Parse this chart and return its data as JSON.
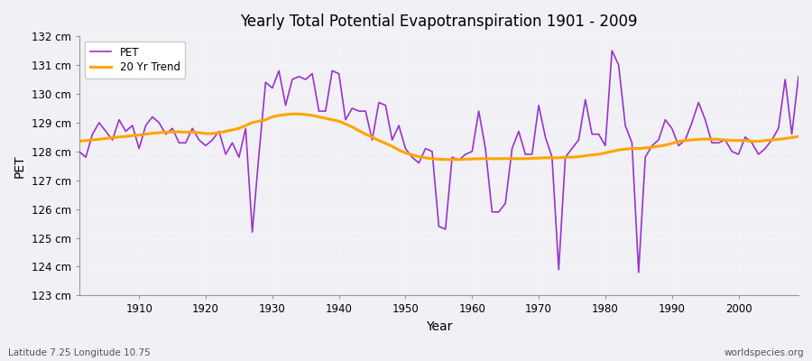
{
  "title": "Yearly Total Potential Evapotranspiration 1901 - 2009",
  "xlabel": "Year",
  "ylabel": "PET",
  "subtitle": "Latitude 7.25 Longitude 10.75",
  "watermark": "worldspecies.org",
  "legend_pet": "PET",
  "legend_trend": "20 Yr Trend",
  "pet_color": "#9933cc",
  "trend_color": "#ffa500",
  "bg_color": "#f0f0f5",
  "ylim_min": 123,
  "ylim_max": 132,
  "years": [
    1901,
    1902,
    1903,
    1904,
    1905,
    1906,
    1907,
    1908,
    1909,
    1910,
    1911,
    1912,
    1913,
    1914,
    1915,
    1916,
    1917,
    1918,
    1919,
    1920,
    1921,
    1922,
    1923,
    1924,
    1925,
    1926,
    1927,
    1928,
    1929,
    1930,
    1931,
    1932,
    1933,
    1934,
    1935,
    1936,
    1937,
    1938,
    1939,
    1940,
    1941,
    1942,
    1943,
    1944,
    1945,
    1946,
    1947,
    1948,
    1949,
    1950,
    1951,
    1952,
    1953,
    1954,
    1955,
    1956,
    1957,
    1958,
    1959,
    1960,
    1961,
    1962,
    1963,
    1964,
    1965,
    1966,
    1967,
    1968,
    1969,
    1970,
    1971,
    1972,
    1973,
    1974,
    1975,
    1976,
    1977,
    1978,
    1979,
    1980,
    1981,
    1982,
    1983,
    1984,
    1985,
    1986,
    1987,
    1988,
    1989,
    1990,
    1991,
    1992,
    1993,
    1994,
    1995,
    1996,
    1997,
    1998,
    1999,
    2000,
    2001,
    2002,
    2003,
    2004,
    2005,
    2006,
    2007,
    2008,
    2009
  ],
  "pet_values": [
    128.0,
    127.8,
    128.6,
    129.0,
    128.7,
    128.4,
    129.1,
    128.7,
    128.9,
    128.1,
    128.9,
    129.2,
    129.0,
    128.6,
    128.8,
    128.3,
    128.3,
    128.8,
    128.4,
    128.2,
    128.4,
    128.7,
    127.9,
    128.3,
    127.8,
    128.8,
    125.2,
    127.9,
    130.4,
    130.2,
    130.8,
    129.6,
    130.5,
    130.6,
    130.5,
    130.7,
    129.4,
    129.4,
    130.8,
    130.7,
    129.1,
    129.5,
    129.4,
    129.4,
    128.4,
    129.7,
    129.6,
    128.4,
    128.9,
    128.1,
    127.8,
    127.6,
    128.1,
    128.0,
    125.4,
    125.3,
    127.8,
    127.7,
    127.9,
    128.0,
    129.4,
    128.1,
    125.9,
    125.9,
    126.2,
    128.1,
    128.7,
    127.9,
    127.9,
    129.6,
    128.5,
    127.8,
    123.9,
    127.8,
    128.1,
    128.4,
    129.8,
    128.6,
    128.6,
    128.2,
    131.5,
    131.0,
    128.9,
    128.3,
    123.8,
    127.8,
    128.2,
    128.4,
    129.1,
    128.8,
    128.2,
    128.4,
    129.0,
    129.7,
    129.1,
    128.3,
    128.3,
    128.4,
    128.0,
    127.9,
    128.5,
    128.3,
    127.9,
    128.1,
    128.4,
    128.8,
    130.5,
    128.6,
    130.6
  ],
  "trend_values": [
    128.35,
    128.38,
    128.4,
    128.42,
    128.45,
    128.48,
    128.5,
    128.52,
    128.55,
    128.57,
    128.6,
    128.63,
    128.65,
    128.67,
    128.68,
    128.68,
    128.67,
    128.67,
    128.65,
    128.62,
    128.62,
    128.65,
    128.7,
    128.75,
    128.8,
    128.9,
    129.0,
    129.05,
    129.1,
    129.2,
    129.25,
    129.28,
    129.3,
    129.3,
    129.28,
    129.25,
    129.2,
    129.15,
    129.1,
    129.05,
    128.95,
    128.85,
    128.72,
    128.6,
    128.5,
    128.38,
    128.28,
    128.18,
    128.05,
    127.95,
    127.88,
    127.82,
    127.78,
    127.75,
    127.73,
    127.72,
    127.72,
    127.72,
    127.73,
    127.74,
    127.75,
    127.75,
    127.75,
    127.75,
    127.75,
    127.75,
    127.75,
    127.75,
    127.76,
    127.77,
    127.78,
    127.78,
    127.78,
    127.8,
    127.8,
    127.82,
    127.85,
    127.88,
    127.9,
    127.95,
    128.0,
    128.05,
    128.08,
    128.1,
    128.1,
    128.12,
    128.15,
    128.18,
    128.22,
    128.28,
    128.35,
    128.38,
    128.4,
    128.42,
    128.43,
    128.42,
    128.42,
    128.4,
    128.38,
    128.38,
    128.38,
    128.35,
    128.35,
    128.38,
    128.4,
    128.42,
    128.45,
    128.48,
    128.52
  ]
}
